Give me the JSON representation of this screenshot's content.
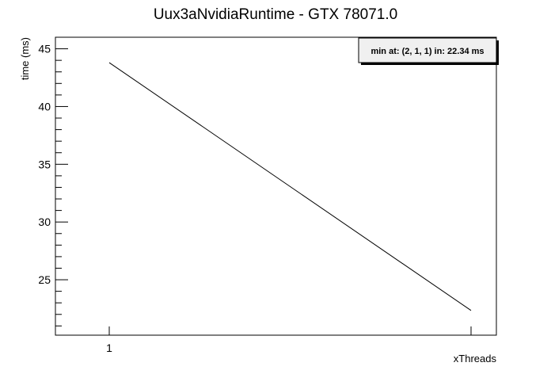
{
  "chart_data": {
    "type": "line",
    "title": "Uux3aNvidiaRuntime - GTX 78071.0",
    "xlabel": "xThreads",
    "ylabel": "time (ms)",
    "x": [
      1,
      2
    ],
    "x_tick_labels": [
      "1"
    ],
    "series": [
      {
        "values": [
          43.8,
          22.34
        ]
      }
    ],
    "ylim": [
      20.2,
      46
    ],
    "y_ticks": [
      25,
      30,
      35,
      40,
      45
    ],
    "grid": false,
    "legend": {
      "text": "min at: (2, 1, 1) in: 22.34 ms",
      "placement": "top-right"
    },
    "colors": {
      "line": "#000000",
      "legend_fill": "#f0f0f0",
      "frame": "#000000"
    }
  }
}
